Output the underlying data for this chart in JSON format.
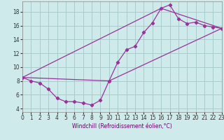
{
  "xlabel": "Windchill (Refroidissement éolien,°C)",
  "background_color": "#ceeaea",
  "grid_color": "#aacccc",
  "line_color": "#993399",
  "xmin": 0,
  "xmax": 23,
  "ymin": 3.5,
  "ymax": 19.5,
  "yticks": [
    4,
    6,
    8,
    10,
    12,
    14,
    16,
    18
  ],
  "xticks": [
    0,
    1,
    2,
    3,
    4,
    5,
    6,
    7,
    8,
    9,
    10,
    11,
    12,
    13,
    14,
    15,
    16,
    17,
    18,
    19,
    20,
    21,
    22,
    23
  ],
  "line1_x": [
    0,
    1,
    2,
    3,
    4,
    5,
    6,
    7,
    8,
    9,
    10,
    11,
    12,
    13,
    14,
    15,
    16,
    17,
    18,
    19,
    20,
    21,
    22,
    23
  ],
  "line1_y": [
    8.5,
    8.0,
    7.7,
    6.8,
    5.5,
    5.0,
    5.0,
    4.8,
    4.5,
    5.2,
    8.0,
    10.7,
    12.5,
    13.0,
    15.0,
    16.4,
    18.5,
    19.0,
    17.0,
    16.3,
    16.5,
    16.0,
    15.8,
    15.6
  ],
  "line2_x": [
    0,
    10,
    23
  ],
  "line2_y": [
    8.5,
    8.0,
    15.6
  ],
  "line3_x": [
    0,
    16,
    23
  ],
  "line3_y": [
    8.5,
    18.5,
    15.6
  ],
  "tick_fontsize": 5.5,
  "label_fontsize": 5.5
}
